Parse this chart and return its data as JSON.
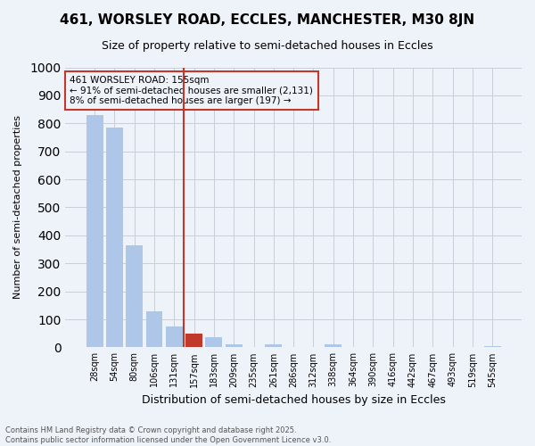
{
  "title": "461, WORSLEY ROAD, ECCLES, MANCHESTER, M30 8JN",
  "subtitle": "Size of property relative to semi-detached houses in Eccles",
  "xlabel": "Distribution of semi-detached houses by size in Eccles",
  "ylabel": "Number of semi-detached properties",
  "categories": [
    "28sqm",
    "54sqm",
    "80sqm",
    "106sqm",
    "131sqm",
    "157sqm",
    "183sqm",
    "209sqm",
    "235sqm",
    "261sqm",
    "286sqm",
    "312sqm",
    "338sqm",
    "364sqm",
    "390sqm",
    "416sqm",
    "442sqm",
    "467sqm",
    "493sqm",
    "519sqm",
    "545sqm"
  ],
  "values": [
    830,
    785,
    365,
    128,
    75,
    50,
    38,
    10,
    0,
    12,
    0,
    0,
    10,
    0,
    0,
    0,
    0,
    0,
    0,
    0,
    5
  ],
  "property_bin_index": 5,
  "property_size": "155sqm",
  "pct_smaller": 91,
  "count_smaller": 2131,
  "pct_larger": 8,
  "count_larger": 197,
  "bar_color_normal": "#aec6e8",
  "bar_color_highlight": "#c0392b",
  "vline_color": "#c0392b",
  "background_color": "#eef2f9",
  "grid_color": "#c8cdd8",
  "annotation_box_color": "#c0392b",
  "footer_text": "Contains HM Land Registry data © Crown copyright and database right 2025.\nContains public sector information licensed under the Open Government Licence v3.0.",
  "ylim": [
    0,
    1000
  ],
  "yticks": [
    0,
    100,
    200,
    300,
    400,
    500,
    600,
    700,
    800,
    900,
    1000
  ]
}
